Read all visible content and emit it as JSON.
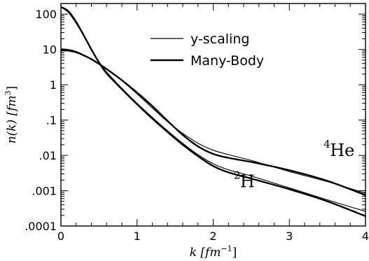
{
  "chart_data": {
    "type": "line",
    "xlabel": "k  [fm",
    "xlabel_sup": "−1",
    "xlabel_end": "]",
    "ylabel": "n(k)  [fm",
    "ylabel_sup": "3",
    "ylabel_end": "]",
    "xlim": [
      0,
      4
    ],
    "ylim": [
      0.0001,
      200
    ],
    "yscale": "log",
    "x_ticks": [
      0,
      1,
      2,
      3,
      4
    ],
    "x_tick_labels": [
      "0",
      "1",
      "2",
      "3",
      "4"
    ],
    "y_ticks": [
      0.0001,
      0.001,
      0.01,
      0.1,
      1,
      10,
      100
    ],
    "y_tick_labels": [
      ".0001",
      ".001",
      ".01",
      ".1",
      "1",
      "10",
      "100"
    ],
    "legend": {
      "placement": "top-center",
      "entries": [
        {
          "label": "y-scaling",
          "style": "thin"
        },
        {
          "label": "Many-Body",
          "style": "thick"
        }
      ]
    },
    "annotations": [
      {
        "text": "He",
        "sup": "4",
        "x": 3.45,
        "y": 0.0095
      },
      {
        "text": "H",
        "sup": "2",
        "x": 2.27,
        "y": 0.00125
      }
    ],
    "series": [
      {
        "style": "thin",
        "x": [
          0,
          0.1,
          0.2,
          0.3,
          0.4,
          0.5,
          0.6,
          0.8,
          1.0,
          1.2,
          1.4,
          1.6,
          1.8,
          2.0,
          2.2,
          2.5,
          3.0,
          3.5,
          4.0
        ],
        "y": [
          160,
          110,
          55,
          24,
          10,
          4.5,
          2.3,
          0.8,
          0.3,
          0.12,
          0.05,
          0.022,
          0.0105,
          0.0058,
          0.0039,
          0.0026,
          0.0012,
          0.00055,
          0.00026
        ]
      },
      {
        "style": "thick",
        "x": [
          0,
          0.1,
          0.2,
          0.3,
          0.4,
          0.5,
          0.6,
          0.8,
          1.0,
          1.2,
          1.4,
          1.6,
          1.8,
          2.0,
          2.2,
          2.5,
          3.0,
          3.5,
          4.0
        ],
        "y": [
          160,
          120,
          60,
          25,
          10,
          4.3,
          2.1,
          0.75,
          0.28,
          0.11,
          0.046,
          0.02,
          0.0095,
          0.005,
          0.0033,
          0.0022,
          0.0011,
          0.0005,
          0.00019
        ]
      },
      {
        "style": "thin",
        "x": [
          0,
          0.1,
          0.2,
          0.3,
          0.4,
          0.5,
          0.6,
          0.8,
          1.0,
          1.2,
          1.4,
          1.6,
          1.8,
          2.0,
          2.2,
          2.5,
          3.0,
          3.5,
          4.0
        ],
        "y": [
          10.5,
          10,
          8.8,
          7,
          5.2,
          3.8,
          2.7,
          1.3,
          0.55,
          0.22,
          0.09,
          0.042,
          0.022,
          0.014,
          0.0105,
          0.0072,
          0.0035,
          0.0018,
          0.00085
        ]
      },
      {
        "style": "thick",
        "x": [
          0,
          0.1,
          0.2,
          0.3,
          0.4,
          0.5,
          0.6,
          0.8,
          1.0,
          1.2,
          1.4,
          1.6,
          1.8,
          2.0,
          2.2,
          2.5,
          3.0,
          3.5,
          4.0
        ],
        "y": [
          9.5,
          9.2,
          8.3,
          6.8,
          5.3,
          3.9,
          2.8,
          1.35,
          0.6,
          0.25,
          0.095,
          0.038,
          0.018,
          0.011,
          0.0085,
          0.0065,
          0.0038,
          0.0019,
          0.00075
        ]
      }
    ]
  }
}
